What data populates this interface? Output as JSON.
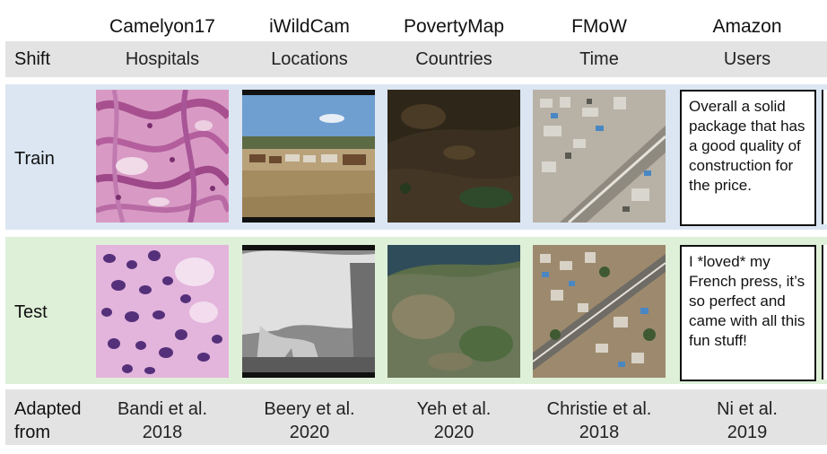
{
  "columns": [
    {
      "dataset": "Camelyon17",
      "shift": "Hospitals",
      "cite_line1": "Bandi et al.",
      "cite_line2": "2018"
    },
    {
      "dataset": "iWildCam",
      "shift": "Locations",
      "cite_line1": "Beery et al.",
      "cite_line2": "2020"
    },
    {
      "dataset": "PovertyMap",
      "shift": "Countries",
      "cite_line1": "Yeh et al.",
      "cite_line2": "2020"
    },
    {
      "dataset": "FMoW",
      "shift": "Time",
      "cite_line1": "Christie et al.",
      "cite_line2": "2018"
    },
    {
      "dataset": "Amazon",
      "shift": "Users",
      "cite_line1": "Ni et al.",
      "cite_line2": "2019"
    }
  ],
  "rows": {
    "shift": "Shift",
    "train": "Train",
    "test": "Test",
    "adapted_line1": "Adapted",
    "adapted_line2": "from"
  },
  "amazon_reviews": {
    "train": "Overall a solid package that has a good quality of construction for the price.",
    "test": "I *loved* my French press, it’s so perfect and came with all this fun stuff!"
  },
  "colors": {
    "train_band": "#dbe6f2",
    "test_band": "#dff0d8",
    "gray_band": "#e3e3e3"
  }
}
